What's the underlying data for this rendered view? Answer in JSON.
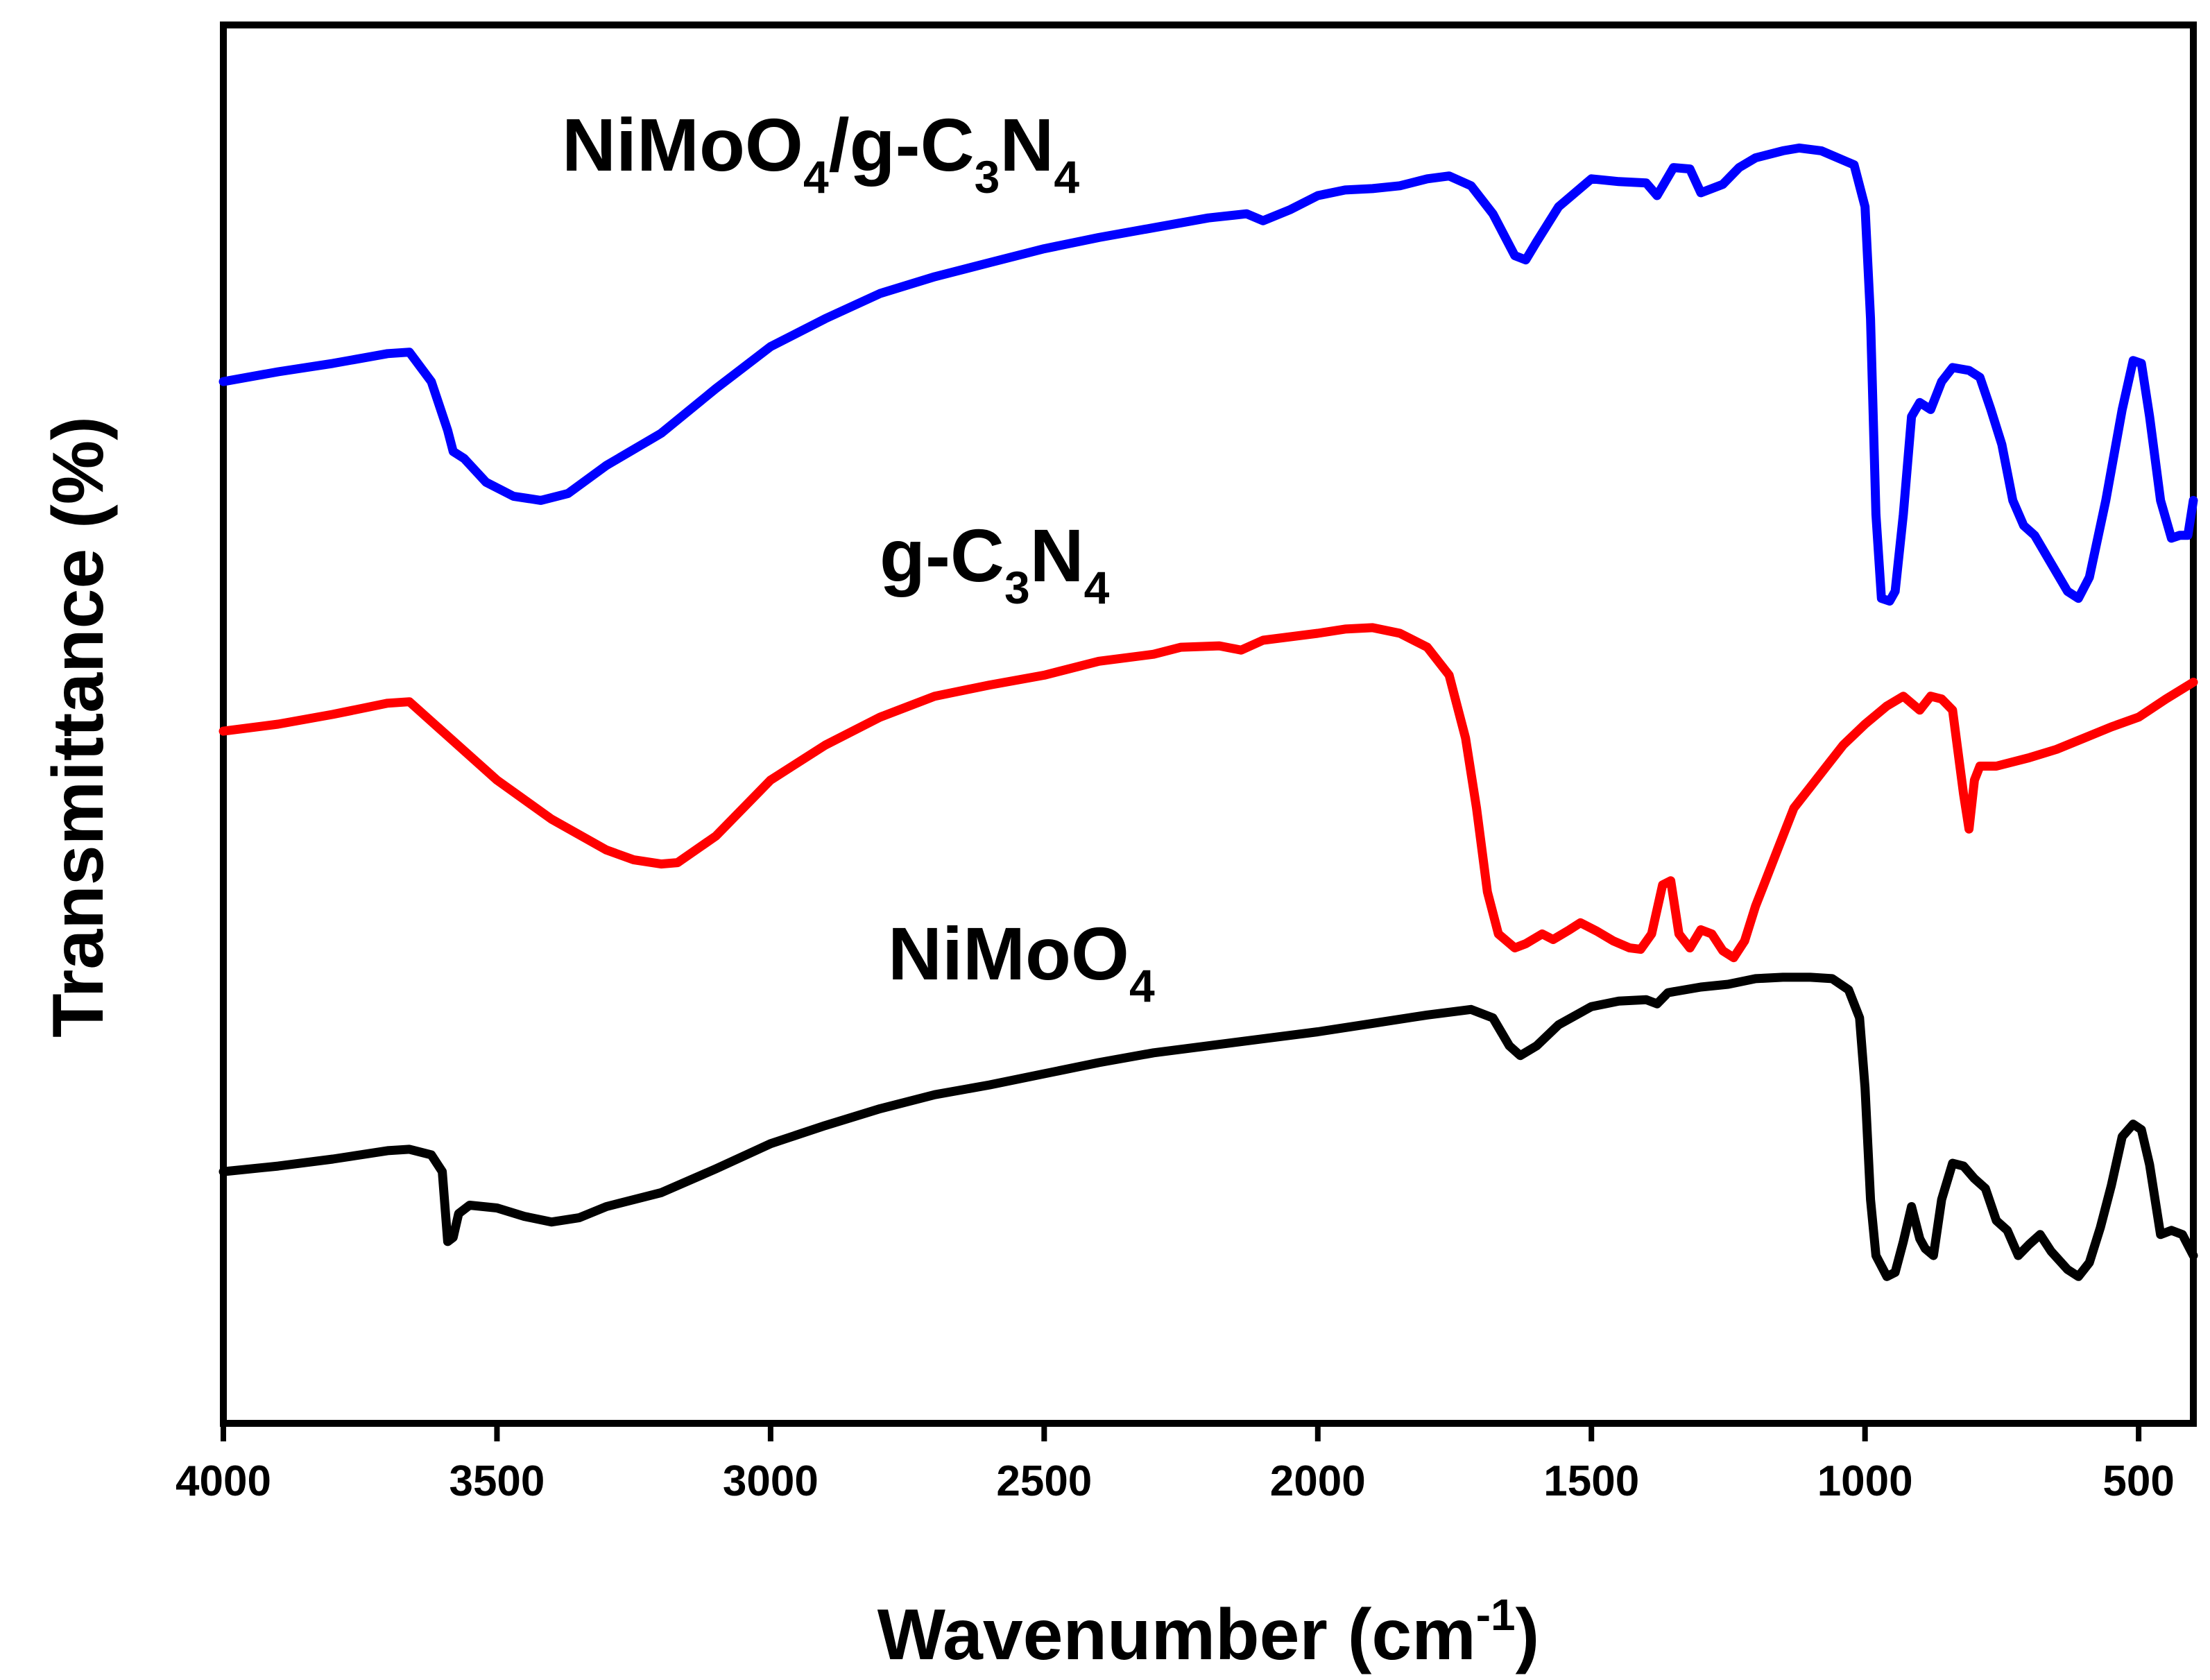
{
  "chart_data": {
    "type": "line",
    "title": "",
    "xlabel": "Wavenumber (cm",
    "xlabel_sup": "-1",
    "xlabel_close": ")",
    "ylabel": "Transmittance (%)",
    "xlim": [
      4000,
      400
    ],
    "ylim": [
      0,
      100
    ],
    "x_ticks": [
      4000,
      3500,
      3000,
      2500,
      2000,
      1500,
      1000,
      500
    ],
    "y_ticks_shown": false,
    "grid": false,
    "legend": "inline labels above each curve",
    "series": [
      {
        "name": "NiMoO4/g-C3N4",
        "label_parts": [
          {
            "t": "NiMoO"
          },
          {
            "t": "4",
            "sub": true
          },
          {
            "t": "/g-C"
          },
          {
            "t": "3",
            "sub": true
          },
          {
            "t": "N"
          },
          {
            "t": "4",
            "sub": true
          }
        ],
        "color": "#0000ff",
        "points": [
          [
            4000,
            74.5
          ],
          [
            3900,
            75.2
          ],
          [
            3800,
            75.8
          ],
          [
            3700,
            76.5
          ],
          [
            3660,
            76.6
          ],
          [
            3620,
            74.5
          ],
          [
            3590,
            71.0
          ],
          [
            3580,
            69.5
          ],
          [
            3560,
            69.0
          ],
          [
            3520,
            67.3
          ],
          [
            3470,
            66.3
          ],
          [
            3420,
            66.0
          ],
          [
            3370,
            66.5
          ],
          [
            3300,
            68.5
          ],
          [
            3200,
            70.8
          ],
          [
            3100,
            74.0
          ],
          [
            3000,
            77.0
          ],
          [
            2900,
            79.0
          ],
          [
            2800,
            80.8
          ],
          [
            2700,
            82.0
          ],
          [
            2600,
            83.0
          ],
          [
            2500,
            84.0
          ],
          [
            2400,
            84.8
          ],
          [
            2300,
            85.5
          ],
          [
            2200,
            86.2
          ],
          [
            2130,
            86.5
          ],
          [
            2100,
            86.0
          ],
          [
            2050,
            86.8
          ],
          [
            2000,
            87.8
          ],
          [
            1950,
            88.2
          ],
          [
            1900,
            88.3
          ],
          [
            1850,
            88.5
          ],
          [
            1800,
            89.0
          ],
          [
            1760,
            89.2
          ],
          [
            1720,
            88.5
          ],
          [
            1680,
            86.5
          ],
          [
            1640,
            83.5
          ],
          [
            1620,
            83.2
          ],
          [
            1600,
            84.5
          ],
          [
            1560,
            87.0
          ],
          [
            1500,
            89.0
          ],
          [
            1450,
            88.8
          ],
          [
            1400,
            88.7
          ],
          [
            1380,
            87.8
          ],
          [
            1350,
            89.8
          ],
          [
            1320,
            89.7
          ],
          [
            1300,
            88.0
          ],
          [
            1260,
            88.6
          ],
          [
            1230,
            89.8
          ],
          [
            1200,
            90.5
          ],
          [
            1150,
            91.0
          ],
          [
            1120,
            91.2
          ],
          [
            1080,
            91.0
          ],
          [
            1050,
            90.5
          ],
          [
            1020,
            90.0
          ],
          [
            1000,
            87.0
          ],
          [
            990,
            79.0
          ],
          [
            980,
            65.0
          ],
          [
            970,
            59.0
          ],
          [
            955,
            58.8
          ],
          [
            945,
            59.5
          ],
          [
            930,
            65.0
          ],
          [
            915,
            72.0
          ],
          [
            900,
            73.0
          ],
          [
            880,
            72.5
          ],
          [
            860,
            74.5
          ],
          [
            840,
            75.5
          ],
          [
            810,
            75.3
          ],
          [
            790,
            74.8
          ],
          [
            770,
            72.5
          ],
          [
            750,
            70.0
          ],
          [
            730,
            66.0
          ],
          [
            710,
            64.2
          ],
          [
            690,
            63.5
          ],
          [
            660,
            61.5
          ],
          [
            630,
            59.5
          ],
          [
            610,
            59.0
          ],
          [
            590,
            60.5
          ],
          [
            560,
            66.0
          ],
          [
            530,
            72.5
          ],
          [
            510,
            76.0
          ],
          [
            495,
            75.8
          ],
          [
            480,
            72.0
          ],
          [
            460,
            66.0
          ],
          [
            440,
            63.3
          ],
          [
            425,
            63.5
          ],
          [
            410,
            63.5
          ],
          [
            400,
            66.0
          ]
        ]
      },
      {
        "name": "g-C3N4",
        "label_parts": [
          {
            "t": "g-C"
          },
          {
            "t": "3",
            "sub": true
          },
          {
            "t": "N"
          },
          {
            "t": "4",
            "sub": true
          }
        ],
        "color": "#ff0000",
        "points": [
          [
            4000,
            49.5
          ],
          [
            3900,
            50.0
          ],
          [
            3800,
            50.7
          ],
          [
            3700,
            51.5
          ],
          [
            3660,
            51.6
          ],
          [
            3600,
            49.5
          ],
          [
            3500,
            46.0
          ],
          [
            3400,
            43.2
          ],
          [
            3300,
            41.0
          ],
          [
            3250,
            40.3
          ],
          [
            3200,
            40.0
          ],
          [
            3170,
            40.1
          ],
          [
            3100,
            42.0
          ],
          [
            3000,
            46.0
          ],
          [
            2900,
            48.5
          ],
          [
            2800,
            50.5
          ],
          [
            2700,
            52.0
          ],
          [
            2600,
            52.8
          ],
          [
            2500,
            53.5
          ],
          [
            2400,
            54.5
          ],
          [
            2300,
            55.0
          ],
          [
            2250,
            55.5
          ],
          [
            2180,
            55.6
          ],
          [
            2140,
            55.3
          ],
          [
            2100,
            56.0
          ],
          [
            2000,
            56.5
          ],
          [
            1950,
            56.8
          ],
          [
            1900,
            56.9
          ],
          [
            1850,
            56.5
          ],
          [
            1800,
            55.5
          ],
          [
            1760,
            53.5
          ],
          [
            1730,
            49.0
          ],
          [
            1710,
            44.0
          ],
          [
            1690,
            38.0
          ],
          [
            1670,
            35.0
          ],
          [
            1640,
            34.0
          ],
          [
            1620,
            34.3
          ],
          [
            1590,
            35.0
          ],
          [
            1570,
            34.6
          ],
          [
            1540,
            35.3
          ],
          [
            1520,
            35.8
          ],
          [
            1490,
            35.2
          ],
          [
            1460,
            34.5
          ],
          [
            1430,
            34.0
          ],
          [
            1410,
            33.9
          ],
          [
            1390,
            35.0
          ],
          [
            1370,
            38.5
          ],
          [
            1355,
            38.8
          ],
          [
            1340,
            35.0
          ],
          [
            1320,
            34.0
          ],
          [
            1300,
            35.3
          ],
          [
            1280,
            35.0
          ],
          [
            1260,
            33.8
          ],
          [
            1240,
            33.3
          ],
          [
            1220,
            34.5
          ],
          [
            1200,
            37.0
          ],
          [
            1180,
            39.0
          ],
          [
            1160,
            41.0
          ],
          [
            1130,
            44.0
          ],
          [
            1100,
            45.5
          ],
          [
            1070,
            47.0
          ],
          [
            1040,
            48.5
          ],
          [
            1000,
            50.0
          ],
          [
            960,
            51.3
          ],
          [
            930,
            52.0
          ],
          [
            900,
            51.0
          ],
          [
            880,
            52.0
          ],
          [
            860,
            51.8
          ],
          [
            840,
            51.0
          ],
          [
            820,
            45.0
          ],
          [
            810,
            42.5
          ],
          [
            800,
            46.0
          ],
          [
            790,
            47.0
          ],
          [
            760,
            47.0
          ],
          [
            700,
            47.6
          ],
          [
            650,
            48.2
          ],
          [
            600,
            49.0
          ],
          [
            550,
            49.8
          ],
          [
            500,
            50.5
          ],
          [
            450,
            51.8
          ],
          [
            400,
            53.0
          ]
        ]
      },
      {
        "name": "NiMoO4",
        "label_parts": [
          {
            "t": "NiMoO"
          },
          {
            "t": "4",
            "sub": true
          }
        ],
        "color": "#000000",
        "points": [
          [
            4000,
            18.0
          ],
          [
            3900,
            18.4
          ],
          [
            3800,
            18.9
          ],
          [
            3700,
            19.5
          ],
          [
            3660,
            19.6
          ],
          [
            3620,
            19.2
          ],
          [
            3600,
            18.0
          ],
          [
            3590,
            13.0
          ],
          [
            3580,
            13.3
          ],
          [
            3570,
            15.0
          ],
          [
            3550,
            15.6
          ],
          [
            3500,
            15.4
          ],
          [
            3450,
            14.8
          ],
          [
            3400,
            14.4
          ],
          [
            3350,
            14.7
          ],
          [
            3300,
            15.5
          ],
          [
            3200,
            16.5
          ],
          [
            3100,
            18.2
          ],
          [
            3000,
            20.0
          ],
          [
            2900,
            21.3
          ],
          [
            2800,
            22.5
          ],
          [
            2700,
            23.5
          ],
          [
            2600,
            24.2
          ],
          [
            2500,
            25.0
          ],
          [
            2400,
            25.8
          ],
          [
            2300,
            26.5
          ],
          [
            2200,
            27.0
          ],
          [
            2100,
            27.5
          ],
          [
            2000,
            28.0
          ],
          [
            1900,
            28.6
          ],
          [
            1800,
            29.2
          ],
          [
            1720,
            29.6
          ],
          [
            1680,
            29.0
          ],
          [
            1650,
            27.0
          ],
          [
            1630,
            26.3
          ],
          [
            1600,
            27.0
          ],
          [
            1560,
            28.5
          ],
          [
            1500,
            29.8
          ],
          [
            1450,
            30.2
          ],
          [
            1400,
            30.3
          ],
          [
            1380,
            30.0
          ],
          [
            1360,
            30.8
          ],
          [
            1300,
            31.2
          ],
          [
            1250,
            31.4
          ],
          [
            1200,
            31.8
          ],
          [
            1150,
            31.9
          ],
          [
            1100,
            31.9
          ],
          [
            1060,
            31.8
          ],
          [
            1030,
            31.0
          ],
          [
            1010,
            29.0
          ],
          [
            1000,
            24.0
          ],
          [
            990,
            16.0
          ],
          [
            980,
            12.0
          ],
          [
            960,
            10.5
          ],
          [
            945,
            10.8
          ],
          [
            930,
            13.0
          ],
          [
            915,
            15.5
          ],
          [
            900,
            13.2
          ],
          [
            890,
            12.5
          ],
          [
            875,
            12.0
          ],
          [
            860,
            16.0
          ],
          [
            840,
            18.6
          ],
          [
            820,
            18.4
          ],
          [
            800,
            17.5
          ],
          [
            780,
            16.8
          ],
          [
            760,
            14.5
          ],
          [
            740,
            13.8
          ],
          [
            720,
            12.0
          ],
          [
            700,
            12.8
          ],
          [
            680,
            13.5
          ],
          [
            660,
            12.3
          ],
          [
            630,
            11.0
          ],
          [
            610,
            10.5
          ],
          [
            590,
            11.5
          ],
          [
            570,
            14.0
          ],
          [
            550,
            17.0
          ],
          [
            530,
            20.5
          ],
          [
            510,
            21.4
          ],
          [
            495,
            21.0
          ],
          [
            480,
            18.5
          ],
          [
            470,
            16.0
          ],
          [
            460,
            13.5
          ],
          [
            440,
            13.8
          ],
          [
            420,
            13.5
          ],
          [
            400,
            12.0
          ]
        ]
      }
    ]
  }
}
